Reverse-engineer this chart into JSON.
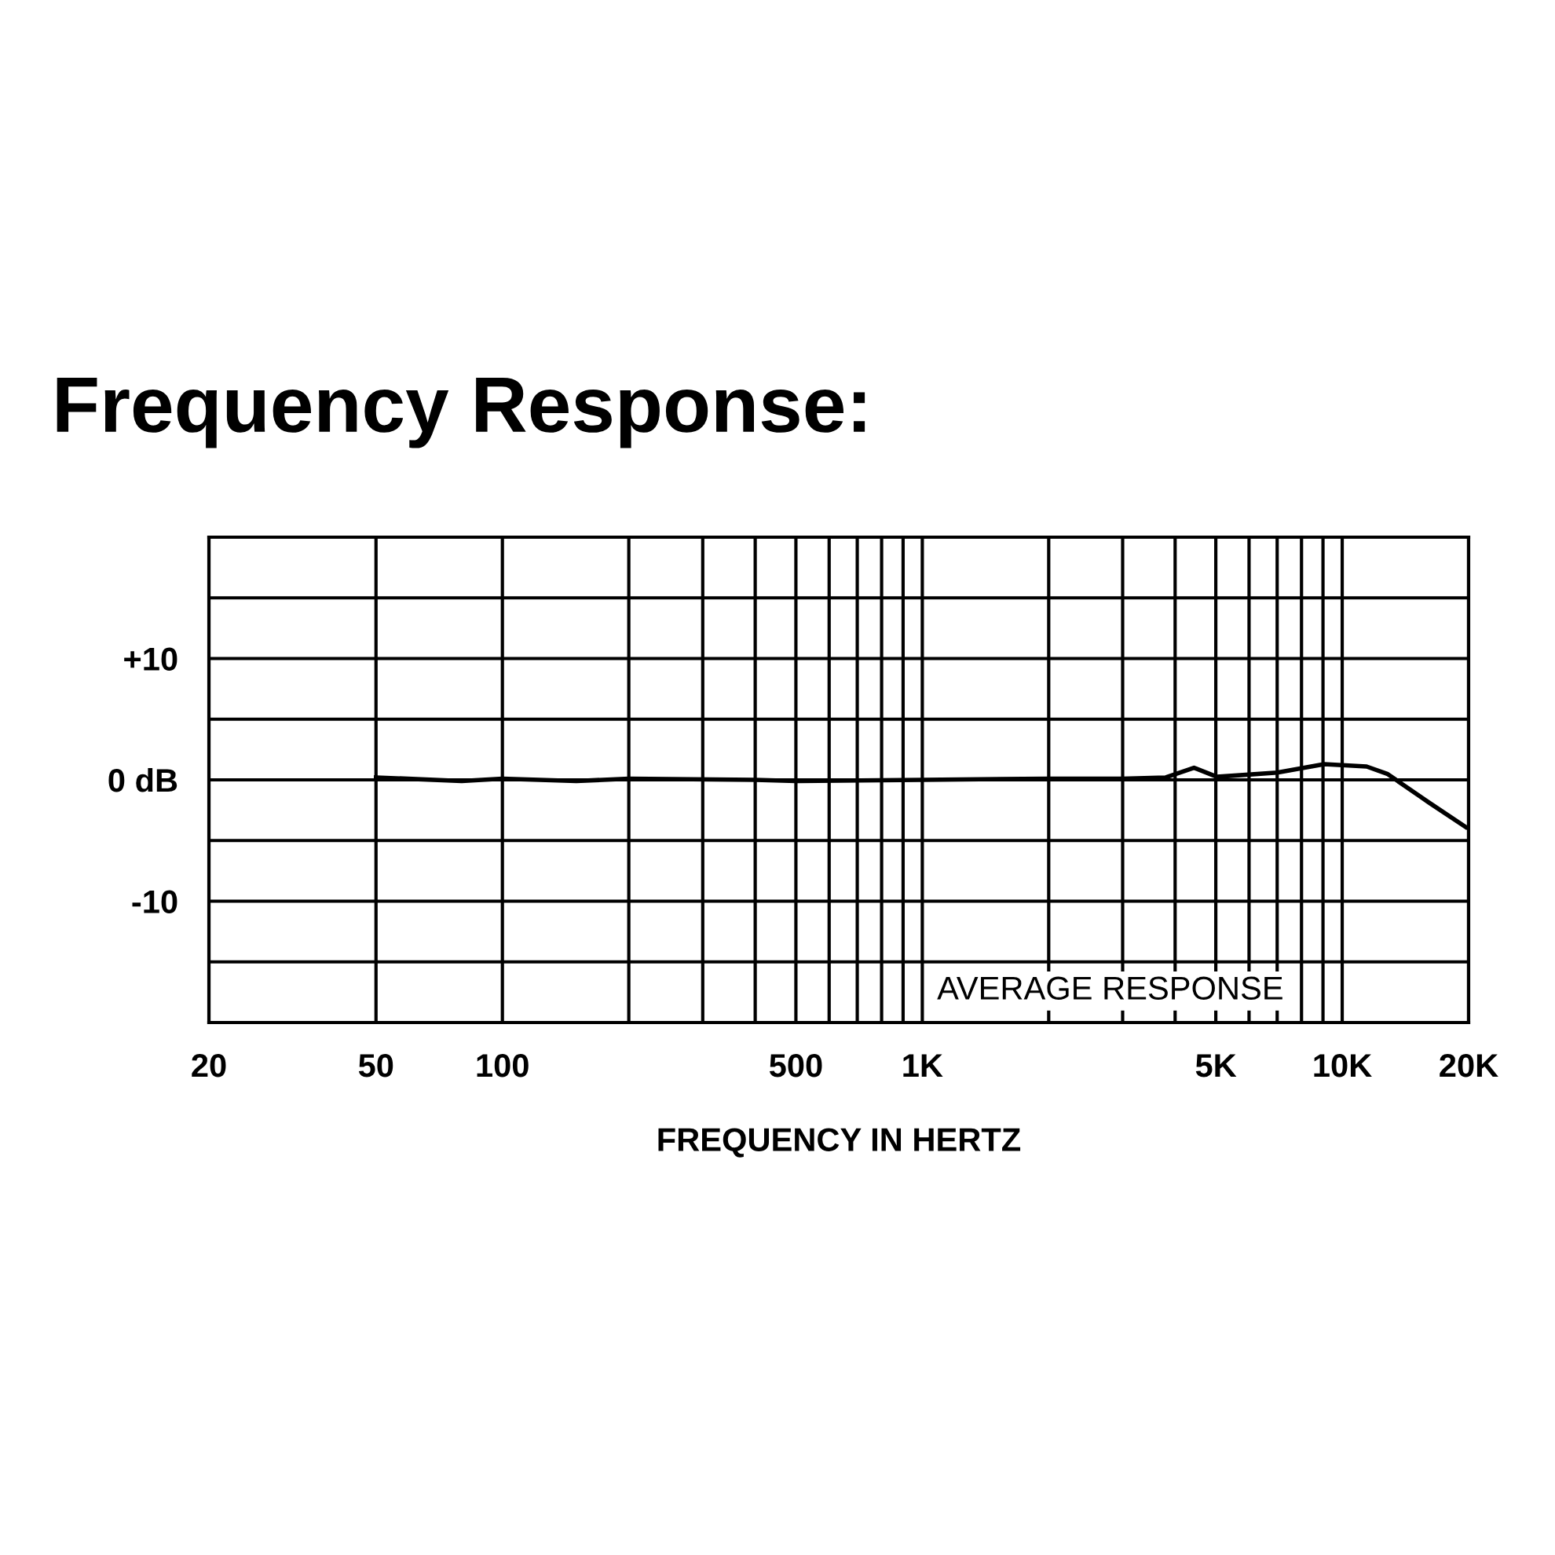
{
  "chart_data": {
    "type": "line",
    "title": "Frequency Response:",
    "xlabel": "FREQUENCY IN HERTZ",
    "log": "x",
    "x": [
      50,
      80,
      100,
      150,
      200,
      400,
      500,
      1000,
      2000,
      3000,
      3800,
      4436,
      5030,
      7000,
      9060,
      11430,
      12800,
      16140,
      19700
    ],
    "series": [
      {
        "color": "#000000",
        "values": [
          0.2,
          -0.1,
          0.1,
          -0.1,
          0.1,
          0,
          -0.1,
          0,
          0.1,
          0.1,
          0.2,
          1.0,
          0.25,
          0.6,
          1.3,
          1.1,
          0.5,
          -1.9,
          -3.9
        ]
      }
    ],
    "xlim": [
      20,
      20000
    ],
    "ylim": [
      -20,
      20
    ],
    "xticks": [
      20,
      50,
      100,
      {
        "value": 200,
        "label": null
      },
      {
        "value": 300,
        "label": null
      },
      {
        "value": 400,
        "label": null
      },
      500,
      {
        "value": 600,
        "label": null
      },
      {
        "value": 700,
        "label": null
      },
      {
        "value": 800,
        "label": null
      },
      {
        "value": 900,
        "label": null
      },
      {
        "value": 1000,
        "label": "1K"
      },
      {
        "value": 2000,
        "label": null
      },
      {
        "value": 3000,
        "label": null
      },
      {
        "value": 4000,
        "label": null
      },
      {
        "value": 5000,
        "label": "5K"
      },
      {
        "value": 6000,
        "label": null
      },
      {
        "value": 7000,
        "label": null
      },
      {
        "value": 8000,
        "label": null
      },
      {
        "value": 9000,
        "label": null
      },
      {
        "value": 10000,
        "label": "10K"
      },
      {
        "value": 20000,
        "label": "20K"
      }
    ],
    "yticks": [
      {
        "value": -15,
        "label": null
      },
      {
        "value": -10,
        "label": "-10"
      },
      {
        "value": -5,
        "label": null
      },
      {
        "value": 0,
        "label": "0 dB"
      },
      {
        "value": 5,
        "label": null
      },
      {
        "value": 10,
        "label": "+10"
      },
      {
        "value": 15,
        "label": null
      }
    ],
    "grid": true,
    "marker": "none",
    "line_style": "solid",
    "annotations": [
      "AVERAGE RESPONSE"
    ]
  }
}
